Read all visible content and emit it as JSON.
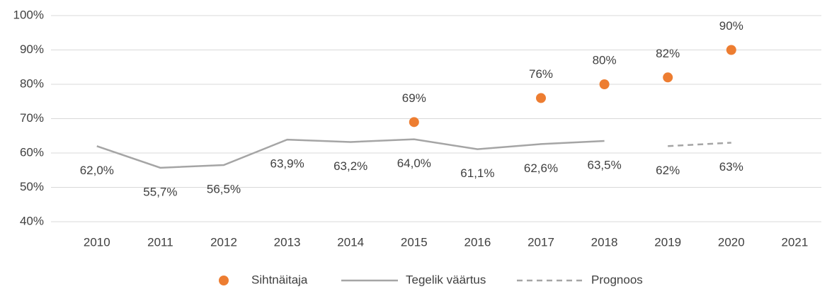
{
  "chart_data": {
    "type": "line",
    "categories": [
      "2010",
      "2011",
      "2012",
      "2013",
      "2014",
      "2015",
      "2016",
      "2017",
      "2018",
      "2019",
      "2020",
      "2021"
    ],
    "series": [
      {
        "name": "Sihtnäitaja",
        "color": "#ED7D31",
        "style": "marker",
        "values": [
          null,
          null,
          null,
          null,
          null,
          69,
          null,
          76,
          80,
          82,
          90,
          null
        ],
        "value_labels": [
          null,
          null,
          null,
          null,
          null,
          "69%",
          null,
          "76%",
          "80%",
          "82%",
          "90%",
          null
        ]
      },
      {
        "name": "Tegelik väärtus",
        "color": "#A5A5A5",
        "style": "solid",
        "values": [
          62.0,
          55.7,
          56.5,
          63.9,
          63.2,
          64.0,
          61.1,
          62.6,
          63.5,
          null,
          null,
          null
        ],
        "value_labels": [
          "62,0%",
          "55,7%",
          "56,5%",
          "63,9%",
          "63,2%",
          "64,0%",
          "61,1%",
          "62,6%",
          "63,5%",
          null,
          null,
          null
        ]
      },
      {
        "name": "Prognoos",
        "color": "#A5A5A5",
        "style": "dashed",
        "values": [
          null,
          null,
          null,
          null,
          null,
          null,
          null,
          null,
          null,
          62,
          63,
          null
        ],
        "value_labels": [
          null,
          null,
          null,
          null,
          null,
          null,
          null,
          null,
          null,
          "62%",
          "63%",
          null
        ]
      }
    ],
    "ylim": [
      40,
      100
    ],
    "yticks": [
      {
        "value": 40,
        "label": "40%"
      },
      {
        "value": 50,
        "label": "50%"
      },
      {
        "value": 60,
        "label": "60%"
      },
      {
        "value": 70,
        "label": "70%"
      },
      {
        "value": 80,
        "label": "80%"
      },
      {
        "value": 90,
        "label": "90%"
      },
      {
        "value": 100,
        "label": "100%"
      }
    ],
    "grid": true,
    "legend": "bottom"
  }
}
